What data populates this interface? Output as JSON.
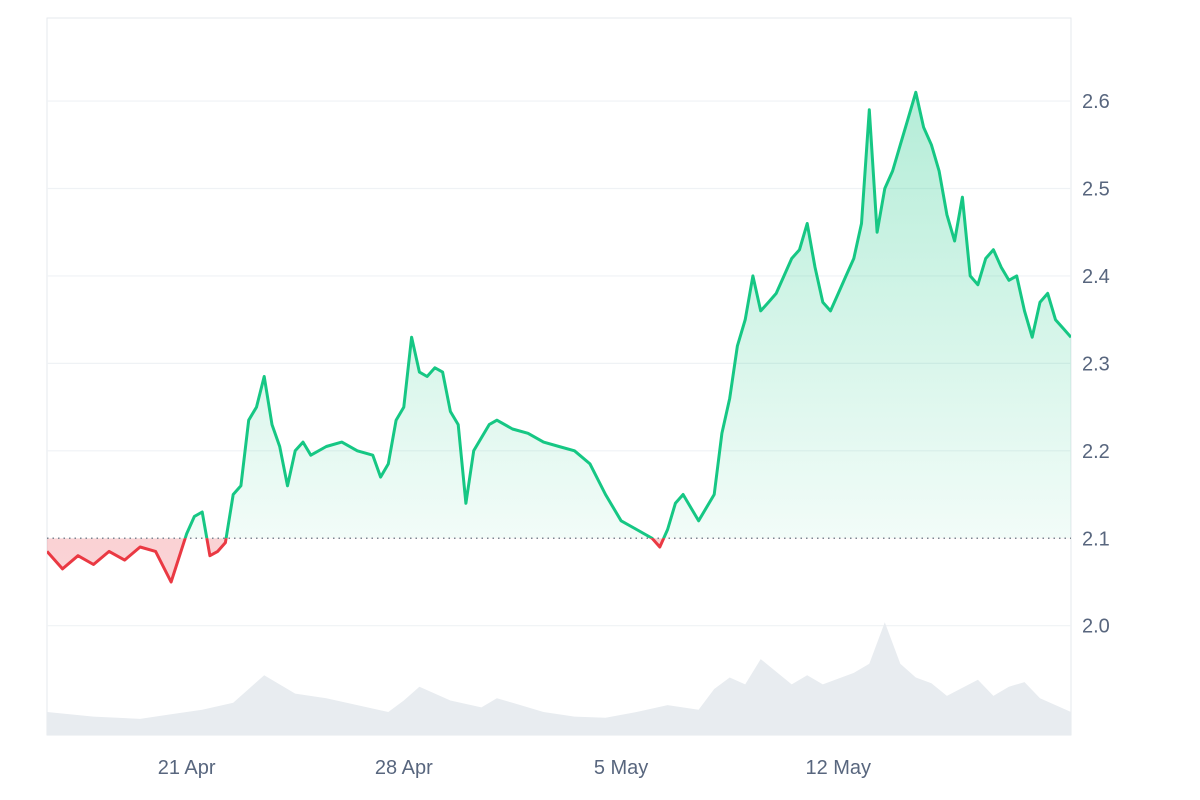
{
  "chart_data": {
    "type": "area",
    "baseline": 2.1,
    "ylim": [
      1.875,
      2.695
    ],
    "xlim": [
      "2026-04-16T12:00",
      "2026-05-19T12:00"
    ],
    "y_ticks": [
      {
        "value": 2.0,
        "label": "2.0"
      },
      {
        "value": 2.1,
        "label": "2.1"
      },
      {
        "value": 2.2,
        "label": "2.2"
      },
      {
        "value": 2.3,
        "label": "2.3"
      },
      {
        "value": 2.4,
        "label": "2.4"
      },
      {
        "value": 2.5,
        "label": "2.5"
      },
      {
        "value": 2.6,
        "label": "2.6"
      }
    ],
    "x_ticks": [
      {
        "date": "2026-04-21T00:00",
        "label": "21 Apr"
      },
      {
        "date": "2026-04-28T00:00",
        "label": "28 Apr"
      },
      {
        "date": "2026-05-05T00:00",
        "label": "5 May"
      },
      {
        "date": "2026-05-12T00:00",
        "label": "12 May"
      }
    ],
    "grid": true,
    "legend": "none",
    "colors": {
      "above": "#16c784",
      "below": "#ea3943",
      "volume": "#e8ecf0",
      "grid": "#eff2f5"
    },
    "price": {
      "x": [
        "2026-04-16T12:00",
        "2026-04-17T00:00",
        "2026-04-17T12:00",
        "2026-04-18T00:00",
        "2026-04-18T12:00",
        "2026-04-19T00:00",
        "2026-04-19T12:00",
        "2026-04-20T00:00",
        "2026-04-20T12:00",
        "2026-04-21T00:00",
        "2026-04-21T06:00",
        "2026-04-21T12:00",
        "2026-04-21T18:00",
        "2026-04-22T00:00",
        "2026-04-22T06:00",
        "2026-04-22T12:00",
        "2026-04-22T18:00",
        "2026-04-23T00:00",
        "2026-04-23T06:00",
        "2026-04-23T12:00",
        "2026-04-23T18:00",
        "2026-04-24T00:00",
        "2026-04-24T06:00",
        "2026-04-24T12:00",
        "2026-04-24T18:00",
        "2026-04-25T00:00",
        "2026-04-25T12:00",
        "2026-04-26T00:00",
        "2026-04-26T12:00",
        "2026-04-27T00:00",
        "2026-04-27T06:00",
        "2026-04-27T12:00",
        "2026-04-27T18:00",
        "2026-04-28T00:00",
        "2026-04-28T06:00",
        "2026-04-28T12:00",
        "2026-04-28T18:00",
        "2026-04-29T00:00",
        "2026-04-29T06:00",
        "2026-04-29T12:00",
        "2026-04-29T18:00",
        "2026-04-30T00:00",
        "2026-04-30T06:00",
        "2026-04-30T12:00",
        "2026-04-30T18:00",
        "2026-05-01T00:00",
        "2026-05-01T12:00",
        "2026-05-02T00:00",
        "2026-05-02T12:00",
        "2026-05-03T00:00",
        "2026-05-03T12:00",
        "2026-05-04T00:00",
        "2026-05-04T12:00",
        "2026-05-05T00:00",
        "2026-05-05T12:00",
        "2026-05-06T00:00",
        "2026-05-06T06:00",
        "2026-05-06T12:00",
        "2026-05-06T18:00",
        "2026-05-07T00:00",
        "2026-05-07T12:00",
        "2026-05-08T00:00",
        "2026-05-08T06:00",
        "2026-05-08T12:00",
        "2026-05-08T18:00",
        "2026-05-09T00:00",
        "2026-05-09T06:00",
        "2026-05-09T12:00",
        "2026-05-09T18:00",
        "2026-05-10T00:00",
        "2026-05-10T06:00",
        "2026-05-10T12:00",
        "2026-05-10T18:00",
        "2026-05-11T00:00",
        "2026-05-11T06:00",
        "2026-05-11T12:00",
        "2026-05-11T18:00",
        "2026-05-12T00:00",
        "2026-05-12T06:00",
        "2026-05-12T12:00",
        "2026-05-12T18:00",
        "2026-05-13T00:00",
        "2026-05-13T06:00",
        "2026-05-13T12:00",
        "2026-05-13T18:00",
        "2026-05-14T00:00",
        "2026-05-14T06:00",
        "2026-05-14T12:00",
        "2026-05-14T18:00",
        "2026-05-15T00:00",
        "2026-05-15T06:00",
        "2026-05-15T12:00",
        "2026-05-15T18:00",
        "2026-05-16T00:00",
        "2026-05-16T06:00",
        "2026-05-16T12:00",
        "2026-05-16T18:00",
        "2026-05-17T00:00",
        "2026-05-17T06:00",
        "2026-05-17T12:00",
        "2026-05-17T18:00",
        "2026-05-18T00:00",
        "2026-05-18T06:00",
        "2026-05-18T12:00",
        "2026-05-18T18:00",
        "2026-05-19T00:00",
        "2026-05-19T06:00",
        "2026-05-19T12:00"
      ],
      "y": [
        2.085,
        2.065,
        2.08,
        2.07,
        2.085,
        2.075,
        2.09,
        2.085,
        2.05,
        2.105,
        2.125,
        2.13,
        2.08,
        2.085,
        2.095,
        2.15,
        2.16,
        2.235,
        2.25,
        2.285,
        2.23,
        2.205,
        2.16,
        2.2,
        2.21,
        2.195,
        2.205,
        2.21,
        2.2,
        2.195,
        2.17,
        2.185,
        2.235,
        2.25,
        2.33,
        2.29,
        2.285,
        2.295,
        2.29,
        2.245,
        2.23,
        2.14,
        2.2,
        2.215,
        2.23,
        2.235,
        2.225,
        2.22,
        2.21,
        2.205,
        2.2,
        2.185,
        2.15,
        2.12,
        2.11,
        2.1,
        2.09,
        2.11,
        2.14,
        2.15,
        2.12,
        2.15,
        2.22,
        2.26,
        2.32,
        2.35,
        2.4,
        2.36,
        2.37,
        2.38,
        2.4,
        2.42,
        2.43,
        2.46,
        2.41,
        2.37,
        2.36,
        2.38,
        2.4,
        2.42,
        2.46,
        2.59,
        2.45,
        2.5,
        2.52,
        2.55,
        2.58,
        2.61,
        2.57,
        2.55,
        2.52,
        2.47,
        2.44,
        2.49,
        2.4,
        2.39,
        2.42,
        2.43,
        2.41,
        2.395,
        2.4,
        2.36,
        2.33,
        2.37,
        2.38,
        2.35,
        2.34,
        2.33
      ]
    },
    "volume": {
      "x": [
        "2026-04-16T12:00",
        "2026-04-18T00:00",
        "2026-04-19T12:00",
        "2026-04-20T12:00",
        "2026-04-21T12:00",
        "2026-04-22T12:00",
        "2026-04-23T00:00",
        "2026-04-23T12:00",
        "2026-04-24T12:00",
        "2026-04-25T12:00",
        "2026-04-26T12:00",
        "2026-04-27T12:00",
        "2026-04-28T00:00",
        "2026-04-28T12:00",
        "2026-04-29T12:00",
        "2026-04-30T12:00",
        "2026-05-01T00:00",
        "2026-05-01T12:00",
        "2026-05-02T12:00",
        "2026-05-03T12:00",
        "2026-05-04T12:00",
        "2026-05-05T12:00",
        "2026-05-06T12:00",
        "2026-05-07T12:00",
        "2026-05-08T00:00",
        "2026-05-08T12:00",
        "2026-05-09T00:00",
        "2026-05-09T12:00",
        "2026-05-10T12:00",
        "2026-05-11T00:00",
        "2026-05-11T12:00",
        "2026-05-12T12:00",
        "2026-05-13T00:00",
        "2026-05-13T12:00",
        "2026-05-14T00:00",
        "2026-05-14T12:00",
        "2026-05-15T00:00",
        "2026-05-15T12:00",
        "2026-05-16T12:00",
        "2026-05-17T00:00",
        "2026-05-17T12:00",
        "2026-05-18T00:00",
        "2026-05-18T12:00",
        "2026-05-19T12:00"
      ],
      "y": [
        0.2,
        0.16,
        0.14,
        0.18,
        0.22,
        0.28,
        0.4,
        0.52,
        0.36,
        0.32,
        0.26,
        0.2,
        0.3,
        0.42,
        0.3,
        0.24,
        0.32,
        0.28,
        0.2,
        0.16,
        0.15,
        0.2,
        0.26,
        0.22,
        0.4,
        0.5,
        0.44,
        0.66,
        0.44,
        0.52,
        0.44,
        0.54,
        0.62,
        0.98,
        0.62,
        0.5,
        0.45,
        0.34,
        0.48,
        0.34,
        0.42,
        0.46,
        0.32,
        0.2
      ]
    }
  }
}
